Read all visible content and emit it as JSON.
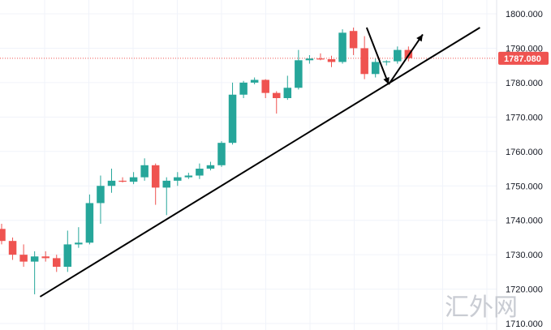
{
  "chart_data": {
    "type": "candlestick",
    "title": "",
    "xlabel": "",
    "ylabel": "",
    "ylim": [
      1710,
      1804
    ],
    "y_ticks": [
      "1800.000",
      "1790.000",
      "1780.000",
      "1770.000",
      "1760.000",
      "1750.000",
      "1740.000",
      "1730.000",
      "1720.000",
      "1710.000"
    ],
    "y_tick_values": [
      1800,
      1790,
      1780,
      1770,
      1760,
      1750,
      1740,
      1730,
      1720,
      1710
    ],
    "grid": true,
    "current_price": 1787.08,
    "current_price_label": "1787.080",
    "colors": {
      "up": "#26a69a",
      "down": "#ef5350",
      "grid": "#f0f3fa",
      "price_line": "#ef5350",
      "annotation": "#000000"
    },
    "candles": [
      {
        "open": 1737.5,
        "high": 1739,
        "low": 1733,
        "close": 1734
      },
      {
        "open": 1734,
        "high": 1735,
        "low": 1728.5,
        "close": 1730
      },
      {
        "open": 1730,
        "high": 1733,
        "low": 1726.5,
        "close": 1728
      },
      {
        "open": 1728,
        "high": 1731,
        "low": 1718.5,
        "close": 1729.5
      },
      {
        "open": 1729.5,
        "high": 1731,
        "low": 1728,
        "close": 1729
      },
      {
        "open": 1729,
        "high": 1730,
        "low": 1725,
        "close": 1726.5
      },
      {
        "open": 1726.5,
        "high": 1737,
        "low": 1725,
        "close": 1733
      },
      {
        "open": 1733,
        "high": 1738,
        "low": 1732,
        "close": 1733.5
      },
      {
        "open": 1733.5,
        "high": 1747.5,
        "low": 1733,
        "close": 1745
      },
      {
        "open": 1745,
        "high": 1753,
        "low": 1739,
        "close": 1750
      },
      {
        "open": 1750,
        "high": 1755,
        "low": 1748,
        "close": 1751.5
      },
      {
        "open": 1751.5,
        "high": 1752.5,
        "low": 1751,
        "close": 1751.2
      },
      {
        "open": 1751.2,
        "high": 1754,
        "low": 1750.5,
        "close": 1752.5
      },
      {
        "open": 1752.5,
        "high": 1758,
        "low": 1751.5,
        "close": 1756
      },
      {
        "open": 1756,
        "high": 1756.5,
        "low": 1744.5,
        "close": 1749.5
      },
      {
        "open": 1749.5,
        "high": 1752.5,
        "low": 1741.5,
        "close": 1751.5
      },
      {
        "open": 1751.5,
        "high": 1754,
        "low": 1750,
        "close": 1752.5
      },
      {
        "open": 1752.5,
        "high": 1753.8,
        "low": 1752,
        "close": 1753
      },
      {
        "open": 1753,
        "high": 1756.5,
        "low": 1752,
        "close": 1755
      },
      {
        "open": 1755,
        "high": 1757,
        "low": 1754.5,
        "close": 1756
      },
      {
        "open": 1756,
        "high": 1763,
        "low": 1755.5,
        "close": 1762.5
      },
      {
        "open": 1762.5,
        "high": 1780,
        "low": 1762,
        "close": 1776.5
      },
      {
        "open": 1776.5,
        "high": 1780.5,
        "low": 1775.5,
        "close": 1780
      },
      {
        "open": 1780,
        "high": 1781.5,
        "low": 1779.5,
        "close": 1780.8
      },
      {
        "open": 1780.8,
        "high": 1781,
        "low": 1775.5,
        "close": 1777
      },
      {
        "open": 1777,
        "high": 1777.5,
        "low": 1771,
        "close": 1775.5
      },
      {
        "open": 1775.5,
        "high": 1782,
        "low": 1775,
        "close": 1778.5
      },
      {
        "open": 1778.5,
        "high": 1789.5,
        "low": 1778,
        "close": 1786.5
      },
      {
        "open": 1786.5,
        "high": 1788,
        "low": 1785.5,
        "close": 1787
      },
      {
        "open": 1787,
        "high": 1788.5,
        "low": 1786.5,
        "close": 1786.8
      },
      {
        "open": 1786.8,
        "high": 1787.8,
        "low": 1784.5,
        "close": 1786
      },
      {
        "open": 1786,
        "high": 1795.5,
        "low": 1785.5,
        "close": 1794.5
      },
      {
        "open": 1795,
        "high": 1796,
        "low": 1788,
        "close": 1790
      },
      {
        "open": 1790,
        "high": 1793.5,
        "low": 1781,
        "close": 1782.5
      },
      {
        "open": 1782.5,
        "high": 1787,
        "low": 1781.5,
        "close": 1786
      },
      {
        "open": 1786,
        "high": 1786.5,
        "low": 1785,
        "close": 1786.2
      },
      {
        "open": 1786.2,
        "high": 1790.5,
        "low": 1785.5,
        "close": 1789.5
      },
      {
        "open": 1789.5,
        "high": 1790.5,
        "low": 1786.2,
        "close": 1787.1
      }
    ],
    "annotations": {
      "trendline": {
        "from": {
          "x_index": 3.5,
          "y": 1717.8
        },
        "to": {
          "x_index": 43.5,
          "y": 1796
        }
      },
      "arrow_down": {
        "from": {
          "x_index": 33.2,
          "y": 1796
        },
        "to": {
          "x_index": 35.2,
          "y": 1779.5
        }
      },
      "arrow_up": {
        "from": {
          "x_index": 35.2,
          "y": 1779.5
        },
        "to": {
          "x_index": 38.3,
          "y": 1794
        }
      }
    }
  },
  "watermark": {
    "text": "汇外网"
  }
}
